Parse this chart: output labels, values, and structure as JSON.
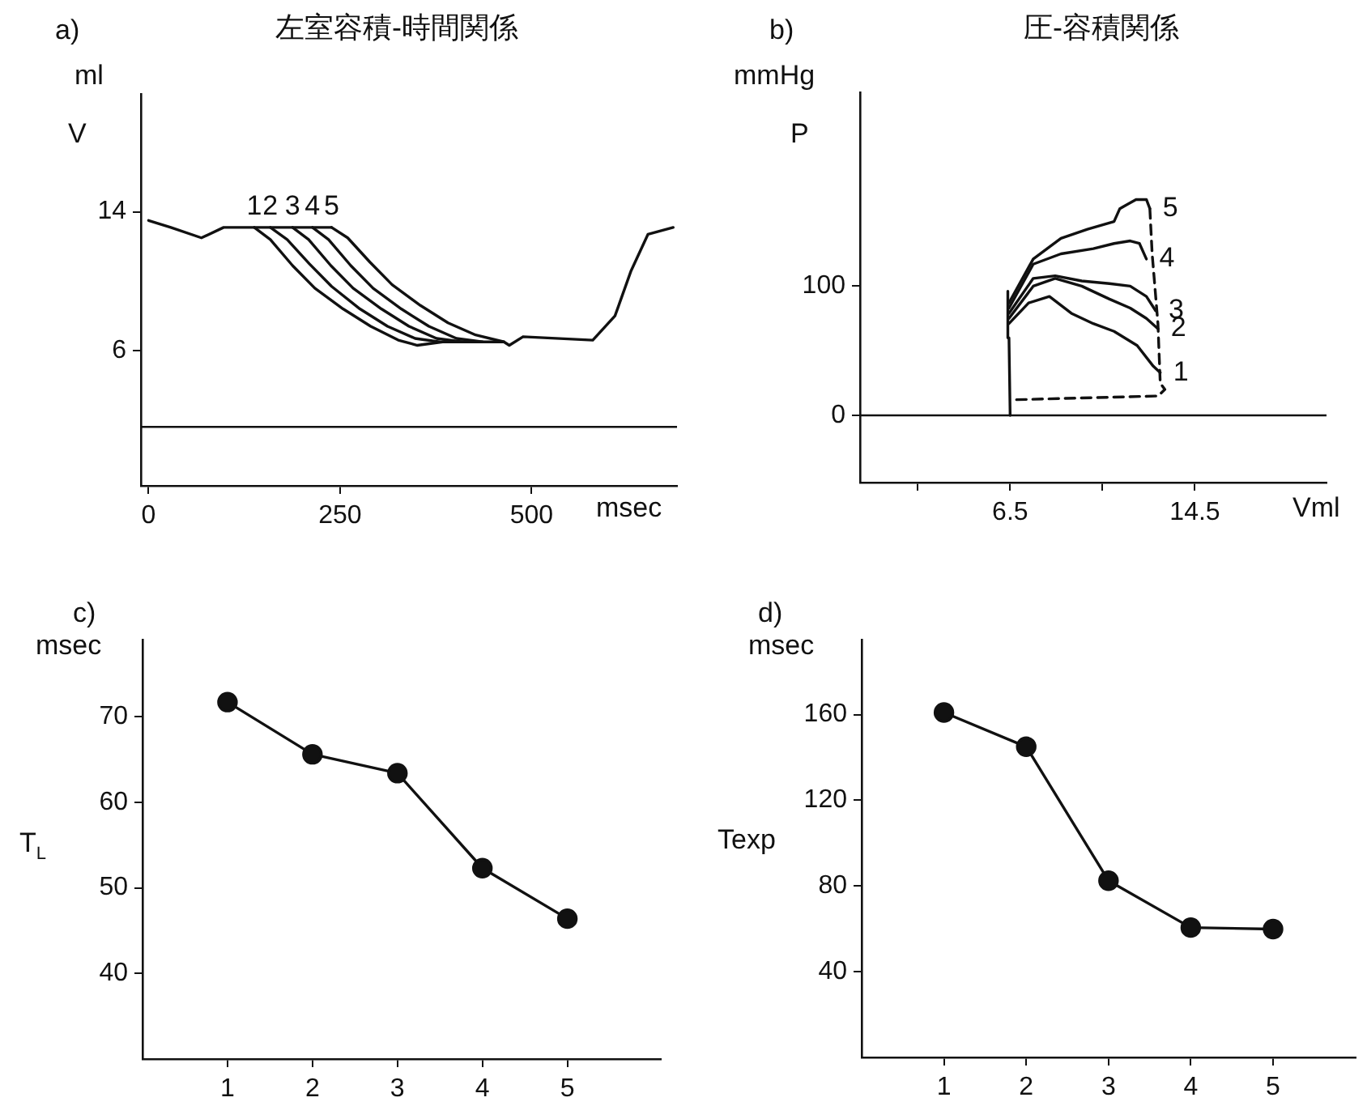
{
  "chart_data": [
    {
      "type": "line",
      "title": "左室容積-時間関係",
      "xlabel": "msec",
      "ylabel": "V",
      "annotations": [
        "a)",
        "ml"
      ],
      "xlim": [
        -10,
        690
      ],
      "ylim": [
        -1.8,
        20.8
      ],
      "xticks": [
        0,
        250,
        500
      ],
      "yticks": [
        6,
        14
      ],
      "grid": false,
      "legend": false,
      "marker": "none",
      "ref_lines": [
        {
          "axis": "y",
          "value": 1.6,
          "color": "#111111"
        }
      ],
      "series": [
        {
          "color": "#111111",
          "x": [
            0,
            29,
            69,
            98,
            138,
            188,
            239
          ],
          "values": [
            13.5,
            13.1,
            12.5,
            13.1,
            13.1,
            13.1,
            13.1
          ]
        },
        {
          "name": "1",
          "color": "#111111",
          "x": [
            138,
            159,
            188,
            217,
            254,
            290,
            326,
            351,
            384,
            464,
            471,
            489,
            580,
            609,
            630,
            652,
            685
          ],
          "values": [
            13.1,
            12.4,
            10.9,
            9.6,
            8.4,
            7.4,
            6.6,
            6.3,
            6.5,
            6.5,
            6.3,
            6.8,
            6.6,
            8.0,
            10.6,
            12.7,
            13.1
          ]
        },
        {
          "name": "2",
          "color": "#111111",
          "x": [
            159,
            181,
            210,
            239,
            276,
            312,
            348,
            380
          ],
          "values": [
            13.1,
            12.4,
            11.0,
            9.7,
            8.4,
            7.4,
            6.7,
            6.5
          ]
        },
        {
          "name": "3",
          "color": "#111111",
          "x": [
            188,
            209,
            238,
            267,
            304,
            340,
            376,
            410
          ],
          "values": [
            13.1,
            12.4,
            10.9,
            9.6,
            8.4,
            7.4,
            6.7,
            6.5
          ]
        },
        {
          "name": "4",
          "color": "#111111",
          "x": [
            214,
            235,
            264,
            293,
            330,
            366,
            402,
            436
          ],
          "values": [
            13.1,
            12.4,
            10.9,
            9.6,
            8.4,
            7.4,
            6.7,
            6.5
          ]
        },
        {
          "name": "5",
          "color": "#111111",
          "x": [
            239,
            260,
            289,
            318,
            355,
            391,
            427,
            464
          ],
          "values": [
            13.1,
            12.5,
            11.1,
            9.8,
            8.6,
            7.6,
            6.9,
            6.5
          ]
        }
      ]
    },
    {
      "type": "line",
      "title": "圧-容積関係",
      "xlabel": "Vml",
      "ylabel": "P",
      "annotations": [
        "b)",
        "mmHg"
      ],
      "xlim": [
        0,
        20.2
      ],
      "ylim": [
        -52,
        250
      ],
      "xticks": [
        {
          "value": 2.5,
          "label": null
        },
        6.5,
        {
          "value": 10.5,
          "label": null
        },
        14.5
      ],
      "yticks": [
        0,
        100
      ],
      "grid": false,
      "legend": false,
      "marker": "none",
      "ref_lines": [
        {
          "axis": "y",
          "value": 0,
          "color": "#111111"
        }
      ],
      "series": [
        {
          "color": "#111111",
          "x": [
            6.5,
            6.45,
            6.4
          ],
          "values": [
            0,
            60,
            96
          ]
        },
        {
          "color": "#111111",
          "line_style": "dashed",
          "x": [
            12.55,
            12.65,
            12.9,
            13.0,
            13.2,
            12.9,
            6.5
          ],
          "values": [
            160,
            125,
            71,
            25,
            20,
            15,
            12
          ]
        },
        {
          "name": "1",
          "color": "#111111",
          "x": [
            6.45,
            7.3,
            8.2,
            9.15,
            10.1,
            11.0,
            12.0,
            12.7,
            13.0
          ],
          "values": [
            71,
            87,
            92,
            79,
            71,
            65,
            54,
            38,
            33
          ]
        },
        {
          "name": "2",
          "color": "#111111",
          "x": [
            6.45,
            7.5,
            8.45,
            9.6,
            10.8,
            11.7,
            12.4,
            12.9
          ],
          "values": [
            75,
            100,
            106,
            100,
            90,
            83,
            75,
            67
          ]
        },
        {
          "name": "3",
          "color": "#111111",
          "x": [
            6.45,
            7.5,
            8.45,
            9.6,
            10.8,
            11.7,
            12.4,
            12.8
          ],
          "values": [
            79,
            106,
            108,
            104,
            102,
            100,
            92,
            81
          ]
        },
        {
          "name": "4",
          "color": "#111111",
          "x": [
            6.45,
            7.5,
            8.7,
            10.1,
            11.0,
            11.7,
            12.1,
            12.4
          ],
          "values": [
            83,
            117,
            125,
            129,
            133,
            135,
            133,
            121
          ]
        },
        {
          "name": "5",
          "color": "#111111",
          "x": [
            6.45,
            7.5,
            8.7,
            9.85,
            11.0,
            11.25,
            11.95,
            12.4,
            12.55
          ],
          "values": [
            87,
            121,
            137,
            144,
            150,
            160,
            167,
            167,
            160
          ]
        }
      ]
    },
    {
      "type": "line",
      "ylabel": "T$_{L}$",
      "annotations": [
        "c)",
        "msec"
      ],
      "x": [
        1,
        2,
        3,
        4,
        5
      ],
      "values": [
        71.7,
        65.6,
        63.4,
        52.3,
        46.4
      ],
      "color": "#111111",
      "xlim": [
        0,
        6.1
      ],
      "ylim": [
        30,
        79
      ],
      "xticks": [
        1,
        2,
        3,
        4,
        5
      ],
      "yticks": [
        40,
        50,
        60,
        70
      ],
      "grid": false,
      "legend": false,
      "marker": "circle"
    },
    {
      "type": "line",
      "ylabel": "Texp",
      "annotations": [
        "d)",
        "msec"
      ],
      "x": [
        1,
        2,
        3,
        4,
        5
      ],
      "values": [
        161,
        145,
        82.5,
        60.6,
        59.9
      ],
      "color": "#111111",
      "xlim": [
        0,
        6
      ],
      "ylim": [
        0,
        195
      ],
      "xticks": [
        1,
        2,
        3,
        4,
        5
      ],
      "yticks": [
        40,
        80,
        120,
        160
      ],
      "grid": false,
      "legend": false,
      "marker": "circle"
    }
  ]
}
